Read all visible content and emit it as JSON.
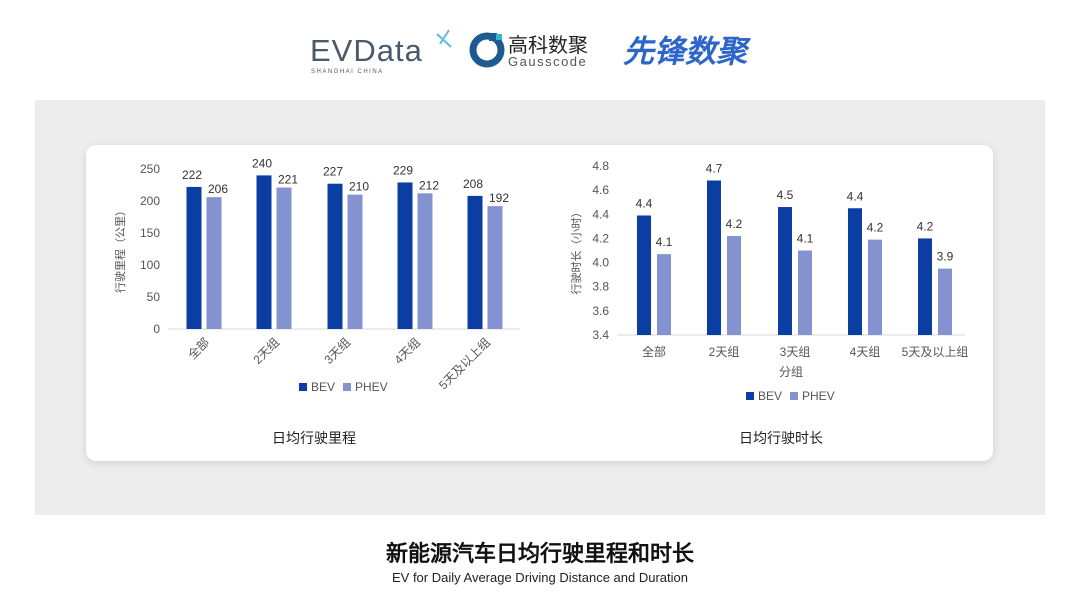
{
  "logos": {
    "evdata": {
      "text": "EVData",
      "sub": "SHANGHAI CHINA"
    },
    "gausscode": {
      "cn": "高科数聚",
      "en": "Gausscode"
    },
    "xianfeng": {
      "text": "先锋数聚"
    }
  },
  "title": "新能源汽车日均行驶里程和时长",
  "subtitle": "EV for Daily Average Driving Distance and Duration",
  "colors": {
    "BEV": "#0a3ea3",
    "PHEV": "#8493cf"
  },
  "chart_data": [
    {
      "type": "bar",
      "title": "日均行驶里程",
      "ylabel": "行驶里程（公里）",
      "xlabel": "",
      "categories": [
        "全部",
        "2天组",
        "3天组",
        "4天组",
        "5天及以上组"
      ],
      "series": [
        {
          "name": "BEV",
          "values": [
            222,
            240,
            227,
            229,
            208
          ],
          "labels": [
            "222",
            "240",
            "227",
            "229",
            "208"
          ]
        },
        {
          "name": "PHEV",
          "values": [
            206,
            221,
            210,
            212,
            192
          ],
          "labels": [
            "206",
            "221",
            "210",
            "212",
            "192"
          ]
        }
      ],
      "ylim": [
        0,
        250
      ],
      "yticks": [
        "0",
        "50",
        "100",
        "150",
        "200",
        "250"
      ],
      "legend": "bottom",
      "grid": false
    },
    {
      "type": "bar",
      "title": "日均行驶时长",
      "ylabel": "行驶时长（小时）",
      "xlabel": "分组",
      "categories": [
        "全部",
        "2天组",
        "3天组",
        "4天组",
        "5天及以上组"
      ],
      "series": [
        {
          "name": "BEV",
          "values": [
            4.39,
            4.68,
            4.46,
            4.45,
            4.2
          ],
          "labels": [
            "4.4",
            "4.7",
            "4.5",
            "4.4",
            "4.2"
          ]
        },
        {
          "name": "PHEV",
          "values": [
            4.07,
            4.22,
            4.1,
            4.19,
            3.95
          ],
          "labels": [
            "4.1",
            "4.2",
            "4.1",
            "4.2",
            "3.9"
          ]
        }
      ],
      "ylim": [
        3.4,
        4.8
      ],
      "yticks": [
        "3.4",
        "3.6",
        "3.8",
        "4.0",
        "4.2",
        "4.4",
        "4.6",
        "4.8"
      ],
      "legend": "bottom",
      "grid": false
    }
  ]
}
